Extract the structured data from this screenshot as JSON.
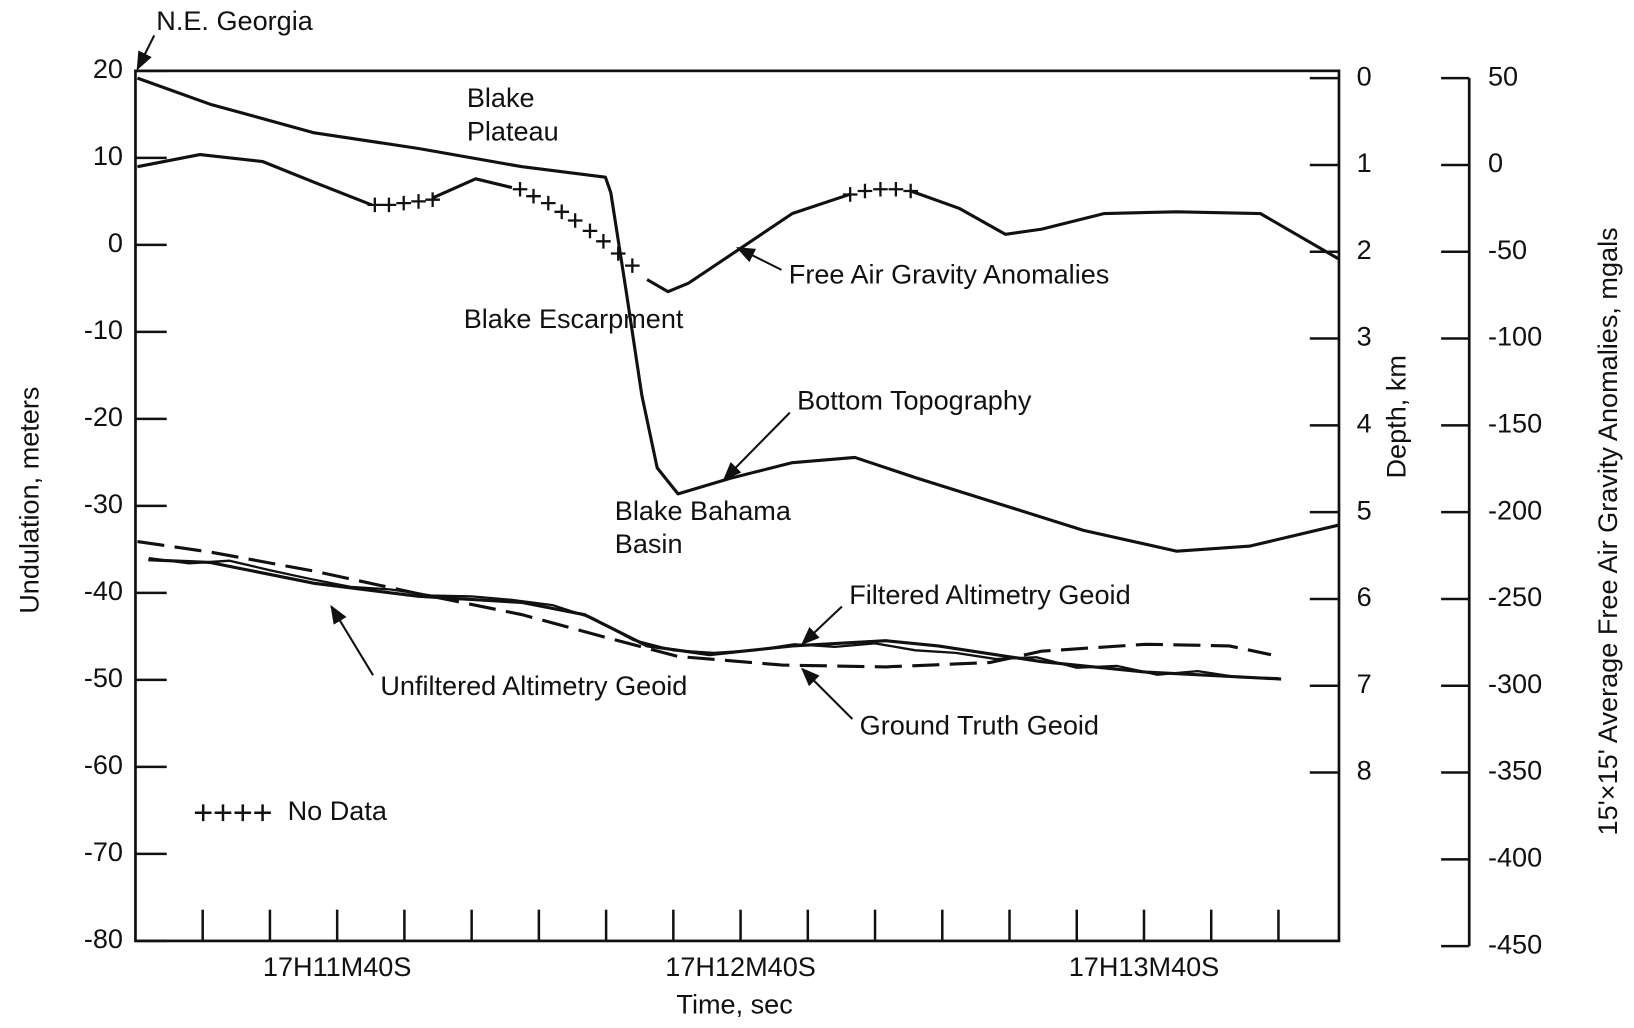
{
  "chart_data": {
    "type": "line",
    "xlabel": "Time, sec",
    "ylabel": "Undulation, meters",
    "y2label": "Depth, km",
    "y3label": "15'×15' Average Free Air Gravity Anomalies, mgals",
    "xlim": [
      670,
      849
    ],
    "xticks": [
      {
        "value": 700,
        "label": "17H11M40S"
      },
      {
        "value": 760,
        "label": "17H12M40S"
      },
      {
        "value": 820,
        "label": "17H13M40S"
      }
    ],
    "xminor_ticks": [
      680,
      690,
      710,
      720,
      730,
      740,
      750,
      770,
      780,
      790,
      800,
      810,
      830,
      840
    ],
    "ylim": [
      -80,
      20
    ],
    "yticks": [
      20,
      10,
      0,
      -10,
      -20,
      -30,
      -40,
      -50,
      -60,
      -70,
      -80
    ],
    "y2lim": [
      0,
      10
    ],
    "y2_reversed": true,
    "y2ticks": [
      0,
      1,
      2,
      3,
      4,
      5,
      6,
      7,
      8
    ],
    "y3lim": [
      -450,
      50
    ],
    "y3ticks": [
      50,
      0,
      -50,
      -100,
      -150,
      -200,
      -250,
      -300,
      -350,
      -400,
      -450
    ],
    "annotations": [
      [
        "N.E. Georgia"
      ],
      [
        "Blake",
        "Plateau"
      ],
      [
        "Blake Escarpment"
      ],
      [
        "Blake Bahama",
        "Basin"
      ]
    ],
    "series": [
      {
        "name": "Bottom Topography",
        "color": "#111111",
        "axis": "y2",
        "style": "solid",
        "x": [
          670.3,
          681.1,
          696.6,
          712.1,
          727.5,
          739.9,
          740.7,
          743.0,
          745.3,
          747.6,
          750.7,
          758.5,
          767.7,
          777.0,
          786.3,
          798.7,
          811.0,
          824.9,
          835.8,
          848.9
        ],
        "values": [
          0,
          0.3,
          0.63,
          0.81,
          1.02,
          1.14,
          1.32,
          2.46,
          3.65,
          4.49,
          4.79,
          4.61,
          4.43,
          4.37,
          4.61,
          4.91,
          5.21,
          5.45,
          5.39,
          5.15
        ]
      },
      {
        "name": "Free Air Gravity Anomalies",
        "color": "#111111",
        "axis": "y3",
        "style": "solid",
        "x": [
          670.3,
          679.6,
          688.9,
          696.6,
          705.1,
          709.0,
          714.2,
          720.6,
          726.0,
          736.0,
          746.1,
          749.2,
          752.3,
          760.0,
          767.7,
          776.2,
          780.5,
          785.3,
          792.5,
          799.4,
          804.8,
          814.1,
          824.9,
          837.3,
          848.9
        ],
        "values": [
          -1,
          6,
          2,
          -10,
          -23,
          null,
          -19,
          -8,
          -13,
          null,
          -66,
          -73,
          -68,
          -48,
          -28,
          -17,
          null,
          -15,
          -25,
          -40,
          -37,
          -28,
          -27,
          -28,
          -54
        ]
      },
      {
        "name": "No Data",
        "color": "#111111",
        "axis": "y3",
        "style": "cross",
        "x": [
          705.6,
          707.7,
          709.9,
          712.1,
          714.2,
          727.2,
          729.2,
          731.4,
          733.4,
          735.4,
          737.6,
          739.6,
          741.8,
          743.9,
          776.3,
          778.5,
          780.8,
          783.1,
          785.3
        ],
        "values": [
          -23,
          -23,
          -22,
          -21,
          -20,
          -14,
          -18,
          -22,
          -27,
          -32,
          -38,
          -44,
          -51,
          -58,
          -17,
          -15,
          -14,
          -14,
          -15
        ]
      },
      {
        "name": "Ground Truth Geoid",
        "color": "#111111",
        "axis": "y",
        "style": "dashed",
        "x": [
          670.3,
          681.1,
          696.6,
          712.1,
          727.5,
          739.9,
          750.7,
          766.2,
          781.6,
          797.1,
          804.8,
          820.3,
          832.7,
          838.9
        ],
        "values": [
          -34.1,
          -35.3,
          -37.5,
          -40.1,
          -42.5,
          -45.1,
          -47.3,
          -48.3,
          -48.5,
          -48.0,
          -46.7,
          -45.9,
          -46.1,
          -47.1
        ]
      },
      {
        "name": "Filtered Altimetry Geoid",
        "color": "#111111",
        "axis": "y",
        "style": "solid",
        "x": [
          671.9,
          681.1,
          696.6,
          712.1,
          727.5,
          736.8,
          746.1,
          755.4,
          767.7,
          781.6,
          789.4,
          804.8,
          820.3,
          840.4
        ],
        "values": [
          -36.2,
          -36.5,
          -38.9,
          -40.4,
          -41.1,
          -42.5,
          -46.1,
          -47.1,
          -46.1,
          -45.5,
          -46.1,
          -47.9,
          -49.1,
          -49.9
        ]
      },
      {
        "name": "Unfiltered Altimetry Geoid",
        "color": "#111111",
        "axis": "y",
        "style": "thin",
        "x": [
          672,
          678,
          684,
          690,
          696,
          702,
          708,
          714,
          720,
          726,
          732,
          738,
          744,
          750,
          756,
          762,
          768,
          774,
          780,
          786,
          792,
          798,
          804,
          810,
          816,
          822,
          828,
          834,
          840
        ],
        "values": [
          -36.0,
          -36.6,
          -36.3,
          -37.4,
          -38.4,
          -39.3,
          -39.6,
          -40.3,
          -40.4,
          -40.8,
          -41.4,
          -42.9,
          -45.4,
          -46.6,
          -46.9,
          -46.6,
          -45.9,
          -46.2,
          -45.8,
          -46.6,
          -46.9,
          -47.6,
          -47.4,
          -48.6,
          -48.4,
          -49.4,
          -49.0,
          -49.7,
          -49.8
        ]
      }
    ]
  }
}
